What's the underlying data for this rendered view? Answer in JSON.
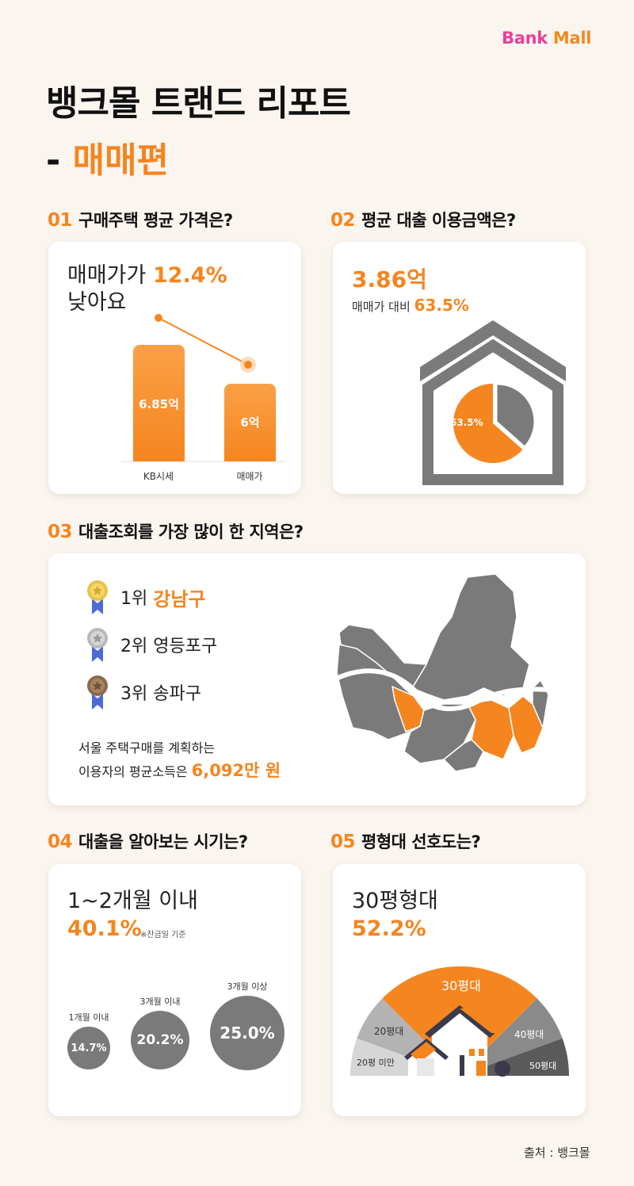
{
  "brand": {
    "bank": "Bank",
    "mall": "Mall"
  },
  "title": {
    "line1": "뱅크몰 트랜드 리포트",
    "line2_prefix": "- ",
    "line2_accent": "매매편"
  },
  "sections": {
    "s01": {
      "num": "01",
      "label": "구매주택 평균 가격은?"
    },
    "s02": {
      "num": "02",
      "label": "평균 대출 이용금액은?"
    },
    "s03": {
      "num": "03",
      "label": "대출조회를 가장 많이 한 지역은?"
    },
    "s04": {
      "num": "04",
      "label": "대출을 알아보는 시기는?"
    },
    "s05": {
      "num": "05",
      "label": "평형대 선호도는?"
    }
  },
  "card1": {
    "headline_prefix": "매매가가 ",
    "headline_accent": "12.4%",
    "headline_line2": "낮아요",
    "bars": [
      {
        "label": "KB시세",
        "value_label": "6.85억",
        "value": 6.85
      },
      {
        "label": "매매가",
        "value_label": "6억",
        "value": 6.0
      }
    ]
  },
  "card2": {
    "amount": "3.86억",
    "ratio_prefix": "매매가 대비 ",
    "ratio_accent": "63.5%",
    "pie_label": "63.5%",
    "pie_value": 63.5
  },
  "card3": {
    "ranks": [
      {
        "rank": "1위",
        "name": "강남구",
        "medal": "gold-medal-icon"
      },
      {
        "rank": "2위",
        "name": "영등포구",
        "medal": "silver-medal-icon"
      },
      {
        "rank": "3위",
        "name": "송파구",
        "medal": "bronze-medal-icon"
      }
    ],
    "income_line1": "서울 주택구매를 계획하는",
    "income_line2_prefix": "이용자의 평균소득은 ",
    "income_accent": "6,092만 원"
  },
  "card4": {
    "headline": "1~2개월 이내",
    "value": "40.1%",
    "note": "※잔금일 기준",
    "bubbles": [
      {
        "label": "1개월 이내",
        "value": "14.7%"
      },
      {
        "label": "3개월 이내",
        "value": "20.2%"
      },
      {
        "label": "3개월 이상",
        "value": "25.0%"
      }
    ]
  },
  "card5": {
    "headline": "30평형대",
    "value": "52.2%",
    "segments": [
      {
        "label": "20평 미만"
      },
      {
        "label": "20평대"
      },
      {
        "label": "30평대"
      },
      {
        "label": "40평대"
      },
      {
        "label": "50평대"
      }
    ]
  },
  "source": "출처 : 뱅크몰",
  "colors": {
    "accent": "#f5851f",
    "gray": "#7a7a7a",
    "dark": "#555555",
    "pink": "#ea3f9a"
  }
}
